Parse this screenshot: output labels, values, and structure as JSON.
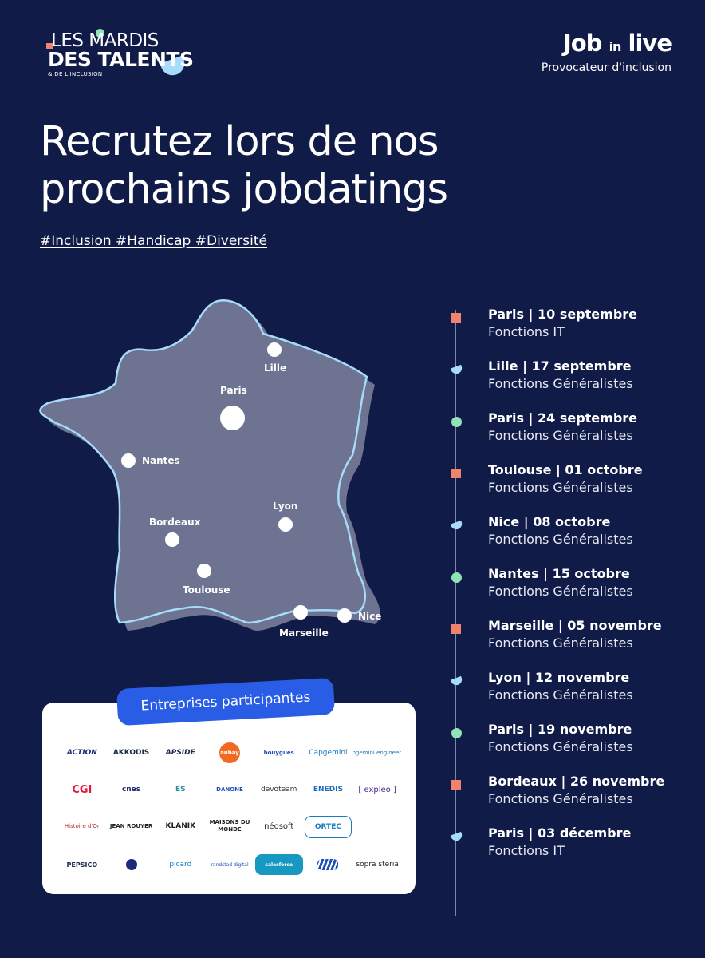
{
  "logo_left": {
    "line1": "LES MARDIS",
    "line2": "DES TALENTS",
    "line3": "& DE L'INCLUSION"
  },
  "logo_right": {
    "brand_a": "Job",
    "brand_b": "in",
    "brand_c": "live",
    "tagline": "Provocateur d'inclusion"
  },
  "title": "Recrutez lors de nos prochains jobdatings",
  "hashtags": "#Inclusion #Handicap #Diversité",
  "map": {
    "cities": [
      "Lille",
      "Paris",
      "Nantes",
      "Lyon",
      "Bordeaux",
      "Toulouse",
      "Marseille",
      "Nice"
    ]
  },
  "companies": {
    "heading": "Entreprises participantes",
    "logos": [
      "ACTION",
      "AKKODIS",
      "APSIDE",
      "aubay",
      "bouygues",
      "Capgemini",
      "Capgemini engineering",
      "CGI",
      "cnes",
      "ES",
      "DANONE",
      "devoteam",
      "ENEDIS",
      "[ expleo ]",
      "Histoire d'Or",
      "JEAN ROUYER",
      "KLANIK",
      "MAISONS DU MONDE",
      "néosoft",
      "ORTEC",
      "",
      "PEPSICO",
      "",
      "picard",
      "randstad digital",
      "salesforce",
      "",
      "sopra steria"
    ]
  },
  "timeline": [
    {
      "title": "Paris | 10 septembre",
      "subtitle": "Fonctions IT",
      "marker": "square"
    },
    {
      "title": "Lille | 17 septembre",
      "subtitle": "Fonctions Généralistes",
      "marker": "leaf"
    },
    {
      "title": "Paris | 24 septembre",
      "subtitle": "Fonctions Généralistes",
      "marker": "circle"
    },
    {
      "title": "Toulouse | 01 octobre",
      "subtitle": "Fonctions Généralistes",
      "marker": "square"
    },
    {
      "title": "Nice | 08 octobre",
      "subtitle": "Fonctions Généralistes",
      "marker": "leaf"
    },
    {
      "title": "Nantes | 15 octobre",
      "subtitle": "Fonctions Généralistes",
      "marker": "circle"
    },
    {
      "title": "Marseille | 05 novembre",
      "subtitle": "Fonctions Généralistes",
      "marker": "square"
    },
    {
      "title": "Lyon | 12 novembre",
      "subtitle": "Fonctions Généralistes",
      "marker": "leaf"
    },
    {
      "title": "Paris | 19 novembre",
      "subtitle": "Fonctions Généralistes",
      "marker": "circle"
    },
    {
      "title": "Bordeaux | 26 novembre",
      "subtitle": "Fonctions Généralistes",
      "marker": "square"
    },
    {
      "title": "Paris | 03 décembre",
      "subtitle": "Fonctions IT",
      "marker": "leaf"
    }
  ],
  "colors": {
    "background": "#101b48",
    "coral": "#f0826e",
    "mint": "#8fe3b6",
    "sky": "#a6dcfa",
    "pill": "#2a5de6",
    "map_fill": "#6d7390"
  }
}
